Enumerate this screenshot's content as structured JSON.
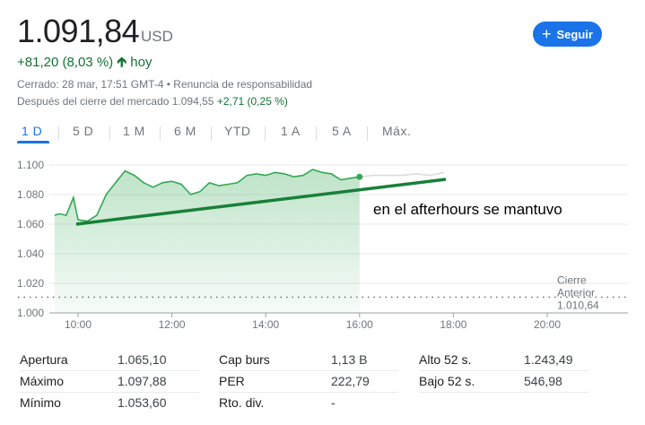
{
  "quote": {
    "price": "1.091,84",
    "currency": "USD",
    "change": "+81,20 (8,03 %)",
    "change_period": "hoy",
    "closed_info": "Cerrado: 28 mar, 17:51 GMT-4 • Renuncia de responsabilidad",
    "after_hours_label": "Después del cierre del mercado 1.094,55",
    "after_hours_change": "+2,71 (0,25 %)"
  },
  "follow_button": {
    "label": "Seguir"
  },
  "tabs": [
    {
      "label": "1 D",
      "active": true
    },
    {
      "label": "5 D"
    },
    {
      "label": "1 M"
    },
    {
      "label": "6 M"
    },
    {
      "label": "YTD"
    },
    {
      "label": "1 A"
    },
    {
      "label": "5 A"
    },
    {
      "label": "Máx."
    }
  ],
  "annotation": "en el afterhours se mantuvo",
  "chart_data": {
    "type": "line",
    "xlabel": "",
    "ylabel": "",
    "xticks": [
      "10:00",
      "12:00",
      "14:00",
      "16:00",
      "18:00",
      "20:00"
    ],
    "yticks": [
      "1.000",
      "1.020",
      "1.040",
      "1.060",
      "1.080",
      "1.100"
    ],
    "ylim": [
      1000,
      1105
    ],
    "previous_close_label": [
      "Cierre",
      "Anterior",
      "1.010,64"
    ],
    "previous_close": 1010.64,
    "series": [
      {
        "session": "regular",
        "x": [
          9.5,
          9.6,
          9.75,
          9.9,
          10.0,
          10.2,
          10.4,
          10.6,
          10.8,
          11.0,
          11.2,
          11.4,
          11.6,
          11.8,
          12.0,
          12.2,
          12.4,
          12.6,
          12.8,
          13.0,
          13.2,
          13.4,
          13.6,
          13.8,
          14.0,
          14.2,
          14.4,
          14.6,
          14.8,
          15.0,
          15.2,
          15.4,
          15.6,
          15.8,
          16.0
        ],
        "y": [
          1066,
          1067,
          1066,
          1078,
          1063,
          1062,
          1066,
          1080,
          1088,
          1096,
          1093,
          1088,
          1085,
          1088,
          1089,
          1087,
          1080,
          1082,
          1088,
          1086,
          1087,
          1088,
          1093,
          1094,
          1093,
          1095,
          1094,
          1092,
          1093,
          1097,
          1095,
          1094,
          1090,
          1091,
          1092
        ]
      },
      {
        "session": "after_hours",
        "x": [
          16.0,
          16.3,
          16.6,
          16.9,
          17.2,
          17.5,
          17.8
        ],
        "y": [
          1092,
          1093,
          1093,
          1093,
          1094,
          1093,
          1095
        ]
      }
    ]
  },
  "stats": [
    {
      "label": "Apertura",
      "value": "1.065,10"
    },
    {
      "label": "Máximo",
      "value": "1.097,88"
    },
    {
      "label": "Mínimo",
      "value": "1.053,60"
    },
    {
      "label": "Cap burs",
      "value": "1,13 B"
    },
    {
      "label": "PER",
      "value": "222,79"
    },
    {
      "label": "Rto. div.",
      "value": "-"
    },
    {
      "label": "Alto 52 s.",
      "value": "1.243,49"
    },
    {
      "label": "Bajo 52 s.",
      "value": "546,98"
    }
  ],
  "colors": {
    "accent": "#1a73e8",
    "positive": "#137333",
    "line": "#34a853",
    "after_hours": "#dadce0"
  }
}
